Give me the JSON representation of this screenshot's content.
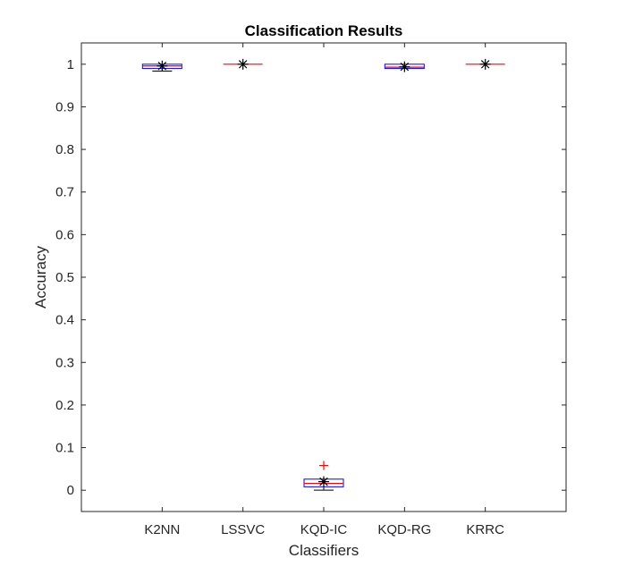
{
  "chart_data": {
    "type": "box",
    "title": "Classification Results",
    "xlabel": "Classifiers",
    "ylabel": "Accuracy",
    "categories": [
      "K2NN",
      "LSSVC",
      "KQD-IC",
      "KQD-RG",
      "KRRC"
    ],
    "ylim": [
      -0.05,
      1.05
    ],
    "yticks": [
      0,
      0.1,
      0.2,
      0.3,
      0.4,
      0.5,
      0.6,
      0.7,
      0.8,
      0.9,
      1
    ],
    "ytick_labels": [
      "0",
      "0.1",
      "0.2",
      "0.3",
      "0.4",
      "0.5",
      "0.6",
      "0.7",
      "0.8",
      "0.9",
      "1"
    ],
    "grid": false,
    "boxes": [
      {
        "category": "K2NN",
        "whisker_low": 0.984,
        "q1": 0.99,
        "median": 0.996,
        "q3": 1.0,
        "whisker_high": 1.0,
        "mean": 0.996,
        "outliers": []
      },
      {
        "category": "LSSVC",
        "whisker_low": 1.0,
        "q1": 1.0,
        "median": 1.0,
        "q3": 1.0,
        "whisker_high": 1.0,
        "mean": 1.0,
        "outliers": []
      },
      {
        "category": "KQD-IC",
        "whisker_low": 0.0,
        "q1": 0.008,
        "median": 0.016,
        "q3": 0.026,
        "whisker_high": 0.026,
        "mean": 0.02,
        "outliers": [
          0.058
        ]
      },
      {
        "category": "KQD-RG",
        "whisker_low": 0.99,
        "q1": 0.99,
        "median": 0.993,
        "q3": 1.0,
        "whisker_high": 1.0,
        "mean": 0.994,
        "outliers": []
      },
      {
        "category": "KRRC",
        "whisker_low": 1.0,
        "q1": 1.0,
        "median": 1.0,
        "q3": 1.0,
        "whisker_high": 1.0,
        "mean": 1.0,
        "outliers": []
      }
    ],
    "colors": {
      "box": "#0000ff",
      "median": "#ff0000",
      "whisker": "#000000",
      "outlier": "#ff0000",
      "mean_marker": "#000000",
      "axes": "#262626"
    }
  }
}
